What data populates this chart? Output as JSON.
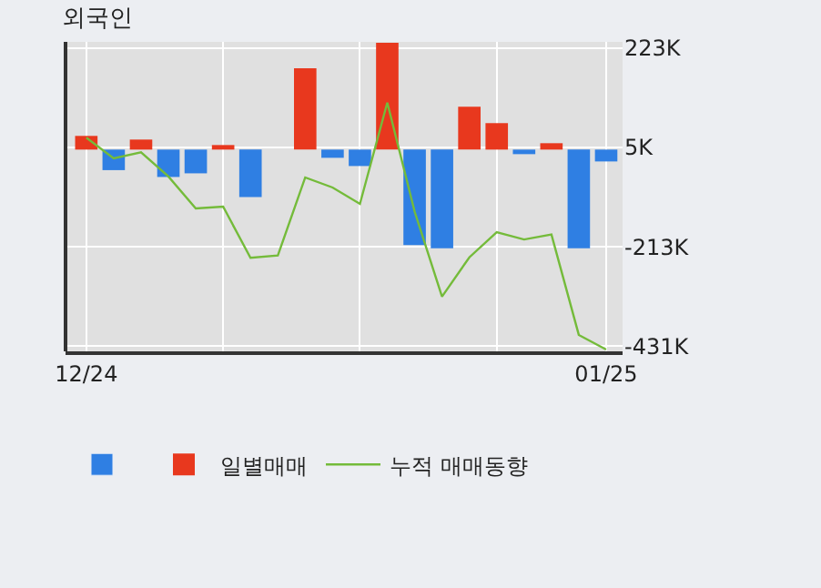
{
  "chart_data": {
    "type": "bar",
    "title": "외국인",
    "categories": [
      "12/24",
      null,
      null,
      null,
      null,
      null,
      null,
      null,
      null,
      null,
      null,
      null,
      null,
      null,
      null,
      null,
      null,
      null,
      null,
      "01/25"
    ],
    "series": [
      {
        "name": "일별매매",
        "colors": [
          "#e8381e",
          "#2f7fe3",
          "#e8381e",
          "#2f7fe3",
          "#2f7fe3",
          "#e8381e",
          "#2f7fe3",
          "#e8381e",
          "#e8381e",
          "#2f7fe3",
          "#2f7fe3",
          "#e8381e",
          "#2f7fe3",
          "#2f7fe3",
          "#e8381e",
          "#e8381e",
          "#2f7fe3",
          "#e8381e",
          "#2f7fe3",
          "#2f7fe3"
        ],
        "color": "#2f7fe3",
        "values": [
          30,
          -45,
          22,
          -60,
          -52,
          10,
          -104,
          0,
          178,
          -18,
          -36,
          234,
          -209,
          -216,
          94,
          58,
          -10,
          14,
          -216,
          -26
        ]
      },
      {
        "name": "누적 매매동향",
        "type": "line",
        "color": "#74bb3a",
        "values": [
          26,
          -19,
          -6,
          -59,
          -129,
          -125,
          -237,
          -232,
          -61,
          -83,
          -119,
          103,
          -136,
          -322,
          -236,
          -181,
          -197,
          -186,
          -406,
          -438
        ]
      }
    ],
    "ylim": [
      -442,
      236
    ],
    "yticks": [
      {
        "value": 223,
        "label": "223K"
      },
      {
        "value": 5,
        "label": "5K"
      },
      {
        "value": -213,
        "label": "-213K"
      },
      {
        "value": -431,
        "label": "-431K"
      }
    ],
    "grid": true,
    "legend": "bottom"
  }
}
